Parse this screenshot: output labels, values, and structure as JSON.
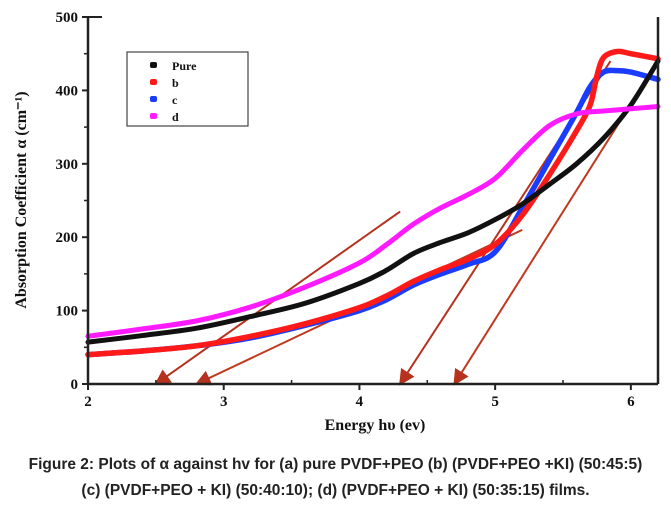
{
  "chart_data": {
    "type": "line",
    "title": "",
    "xlabel": "Energy hυ (ev)",
    "ylabel": "Absorption Coefficient α (cm⁻¹)",
    "xlim": [
      2,
      6.2
    ],
    "ylim": [
      0,
      500
    ],
    "x_ticks": [
      2,
      3,
      4,
      5,
      6
    ],
    "x_minor_ticks": [
      2.5,
      3.5,
      4.5,
      5.5
    ],
    "y_ticks": [
      0,
      100,
      200,
      300,
      400,
      500
    ],
    "y_minor_ticks": [
      50,
      150,
      250,
      350,
      450
    ],
    "grid": false,
    "legend_position": "top-left",
    "legend": [
      "Pure",
      "b",
      "c",
      "d"
    ],
    "series": [
      {
        "name": "Pure",
        "color": "#111111",
        "x": [
          2.0,
          2.4,
          2.8,
          3.2,
          3.6,
          4.0,
          4.2,
          4.4,
          4.6,
          4.8,
          5.0,
          5.2,
          5.4,
          5.6,
          5.8,
          6.0,
          6.2
        ],
        "y": [
          57,
          66,
          76,
          92,
          110,
          137,
          155,
          178,
          193,
          206,
          224,
          245,
          272,
          300,
          335,
          380,
          440
        ]
      },
      {
        "name": "b",
        "color": "#ff1a1a",
        "x": [
          2.0,
          2.4,
          2.8,
          3.2,
          3.6,
          4.0,
          4.2,
          4.4,
          4.6,
          4.8,
          5.0,
          5.2,
          5.4,
          5.6,
          5.7,
          5.75,
          5.8,
          5.9,
          6.0,
          6.2
        ],
        "y": [
          40,
          45,
          52,
          65,
          82,
          104,
          120,
          140,
          156,
          170,
          190,
          230,
          285,
          345,
          380,
          420,
          445,
          453,
          450,
          443
        ]
      },
      {
        "name": "c",
        "color": "#1a3cff",
        "x": [
          2.0,
          2.4,
          2.8,
          3.2,
          3.6,
          4.0,
          4.2,
          4.4,
          4.6,
          4.8,
          5.0,
          5.2,
          5.4,
          5.6,
          5.7,
          5.8,
          5.9,
          6.0,
          6.2
        ],
        "y": [
          40,
          45,
          52,
          63,
          80,
          100,
          115,
          135,
          150,
          163,
          180,
          240,
          305,
          370,
          405,
          425,
          427,
          425,
          415
        ]
      },
      {
        "name": "d",
        "color": "#ff1aff",
        "x": [
          2.0,
          2.4,
          2.8,
          3.2,
          3.6,
          4.0,
          4.2,
          4.4,
          4.6,
          4.8,
          5.0,
          5.2,
          5.4,
          5.6,
          5.8,
          6.0,
          6.2
        ],
        "y": [
          65,
          75,
          86,
          105,
          132,
          165,
          190,
          218,
          240,
          258,
          280,
          318,
          352,
          368,
          372,
          375,
          378
        ]
      }
    ],
    "tangent_lines": [
      {
        "name": "tangent-1",
        "color": "#b5321f",
        "x_intercept": 2.5,
        "x_end": 4.3,
        "y_end": 235
      },
      {
        "name": "tangent-2",
        "color": "#c0391f",
        "x_intercept": 2.8,
        "x_end": 5.2,
        "y_end": 210
      },
      {
        "name": "tangent-3",
        "color": "#b5321f",
        "x_intercept": 4.3,
        "x_end": 5.85,
        "y_end": 440
      },
      {
        "name": "tangent-4",
        "color": "#c0391f",
        "x_intercept": 4.7,
        "x_end": 6.2,
        "y_end": 440
      }
    ]
  },
  "caption": {
    "line1": "Figure 2: Plots of α against hv for (a) pure PVDF+PEO (b) (PVDF+PEO +KI) (50:45:5)",
    "line2": "(c) (PVDF+PEO + KI) (50:40:10); (d) (PVDF+PEO + KI) (50:35:15) films."
  }
}
